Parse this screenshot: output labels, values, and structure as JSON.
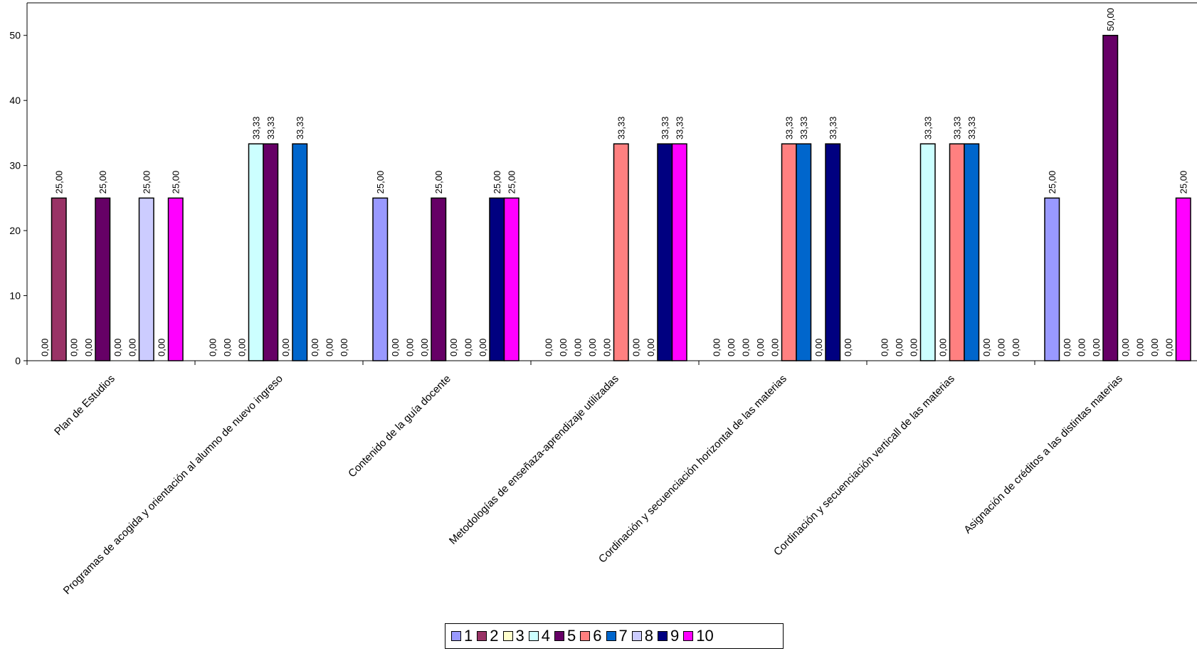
{
  "chart_data": {
    "type": "bar",
    "categories": [
      "Plan de Estudios",
      "Programas de acogida y orientación al alumno de nuevo ingreso",
      "Contenido de la guía docente",
      "Metodologías de enseñaza-aprendizaje utilizadas",
      "Cordinación y secuenciación horizontal de las materias",
      "Cordinación y secuenciación verticall de las materias",
      "Asignación de créditos a las distintas materias"
    ],
    "series": [
      {
        "name": "1",
        "color": "#9999FF",
        "values": [
          0,
          0,
          25,
          0,
          0,
          0,
          25
        ],
        "labels": [
          "0,00",
          "0,00",
          "25,00",
          "0,00",
          "0,00",
          "0,00",
          "25,00"
        ]
      },
      {
        "name": "2",
        "color": "#993366",
        "values": [
          25,
          0,
          0,
          0,
          0,
          0,
          0
        ],
        "labels": [
          "25,00",
          "0,00",
          "0,00",
          "0,00",
          "0,00",
          "0,00",
          "0,00"
        ]
      },
      {
        "name": "3",
        "color": "#FFFFCC",
        "values": [
          0,
          0,
          0,
          0,
          0,
          0,
          0
        ],
        "labels": [
          "0,00",
          "0,00",
          "0,00",
          "0,00",
          "0,00",
          "0,00",
          "0,00"
        ]
      },
      {
        "name": "4",
        "color": "#CCFFFF",
        "values": [
          0,
          33.33,
          0,
          0,
          0,
          33.33,
          0
        ],
        "labels": [
          "0,00",
          "33,33",
          "0,00",
          "0,00",
          "0,00",
          "33,33",
          "0,00"
        ]
      },
      {
        "name": "5",
        "color": "#660066",
        "values": [
          25,
          33.33,
          25,
          0,
          0,
          0,
          50
        ],
        "labels": [
          "25,00",
          "33,33",
          "25,00",
          "0,00",
          "0,00",
          "0,00",
          "50,00"
        ]
      },
      {
        "name": "6",
        "color": "#FF8080",
        "values": [
          0,
          0,
          0,
          33.33,
          33.33,
          33.33,
          0
        ],
        "labels": [
          "0,00",
          "0,00",
          "0,00",
          "33,33",
          "33,33",
          "33,33",
          "0,00"
        ]
      },
      {
        "name": "7",
        "color": "#0066CC",
        "values": [
          0,
          33.33,
          0,
          0,
          33.33,
          33.33,
          0
        ],
        "labels": [
          "0,00",
          "33,33",
          "0,00",
          "0,00",
          "33,33",
          "33,33",
          "0,00"
        ]
      },
      {
        "name": "8",
        "color": "#CCCCFF",
        "values": [
          25,
          0,
          0,
          0,
          0,
          0,
          0
        ],
        "labels": [
          "25,00",
          "0,00",
          "0,00",
          "0,00",
          "0,00",
          "0,00",
          "0,00"
        ]
      },
      {
        "name": "9",
        "color": "#000080",
        "values": [
          0,
          0,
          25,
          33.33,
          33.33,
          0,
          0
        ],
        "labels": [
          "0,00",
          "0,00",
          "25,00",
          "33,33",
          "33,33",
          "0,00",
          "0,00"
        ]
      },
      {
        "name": "10",
        "color": "#FF00FF",
        "values": [
          25,
          0,
          25,
          33.33,
          0,
          0,
          25
        ],
        "labels": [
          "25,00",
          "0,00",
          "25,00",
          "33,33",
          "0,00",
          "0,00",
          "25,00"
        ]
      }
    ],
    "yticks": [
      "0",
      "10",
      "20",
      "30",
      "40",
      "50"
    ],
    "ylim": [
      0,
      55
    ],
    "grid": false,
    "legend_position": "bottom"
  }
}
